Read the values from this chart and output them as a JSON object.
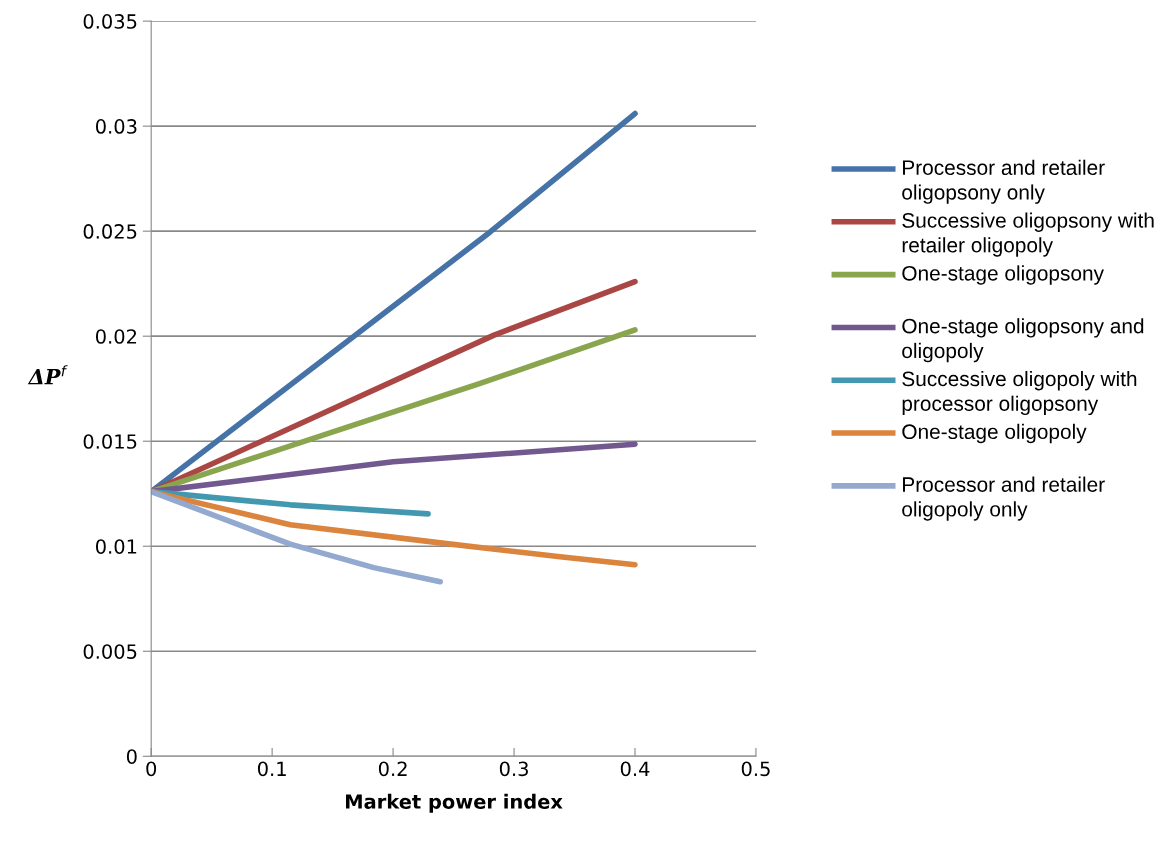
{
  "chart_data": {
    "type": "line",
    "xlabel": "Market power index",
    "ylabel": "ΔP$^{f}$",
    "xlim": [
      0,
      0.5
    ],
    "xticks": [
      0,
      0.1,
      0.2,
      0.3,
      0.4,
      0.5
    ],
    "ylim": [
      0,
      0.035
    ],
    "yticks": [
      0,
      0.005,
      0.01,
      0.015,
      0.02,
      0.025,
      0.03,
      0.035
    ],
    "grid": "y",
    "legend": "right",
    "marker": "none",
    "line_style": "solid",
    "series": [
      {
        "name": "Processor and retailer oligopsony only",
        "color": "#4572a7",
        "x": [
          0,
          0.28,
          0.4
        ],
        "values": [
          0.0126,
          0.02495,
          0.0306
        ]
      },
      {
        "name": "Successive oligopsony with retailer oligopoly",
        "color": "#aa4643",
        "x": [
          0,
          0.283,
          0.4
        ],
        "values": [
          0.0126,
          0.02004,
          0.0226
        ]
      },
      {
        "name": "One-stage oligopsony",
        "color": "#89a54e",
        "x": [
          0,
          0.272,
          0.4
        ],
        "values": [
          0.0126,
          0.01775,
          0.0203
        ]
      },
      {
        "name": "One-stage oligopsony and oligopoly",
        "color": "#71588f",
        "x": [
          0,
          0.2,
          0.4
        ],
        "values": [
          0.0126,
          0.01402,
          0.01486
        ]
      },
      {
        "name": "Successive oligopoly with processor oligopsony",
        "color": "#4198af",
        "x": [
          0,
          0.115,
          0.229
        ],
        "values": [
          0.0126,
          0.01197,
          0.01154
        ]
      },
      {
        "name": "One-stage oligopoly",
        "color": "#db843d",
        "x": [
          0,
          0.115,
          0.239,
          0.338,
          0.4
        ],
        "values": [
          0.0126,
          0.01102,
          0.01016,
          0.0095,
          0.00912
        ]
      },
      {
        "name": "Processor and retailer oligopoly only",
        "color": "#93a9cf",
        "x": [
          0,
          0.115,
          0.184,
          0.239
        ],
        "values": [
          0.0126,
          0.0101,
          0.00898,
          0.00831
        ]
      }
    ]
  }
}
